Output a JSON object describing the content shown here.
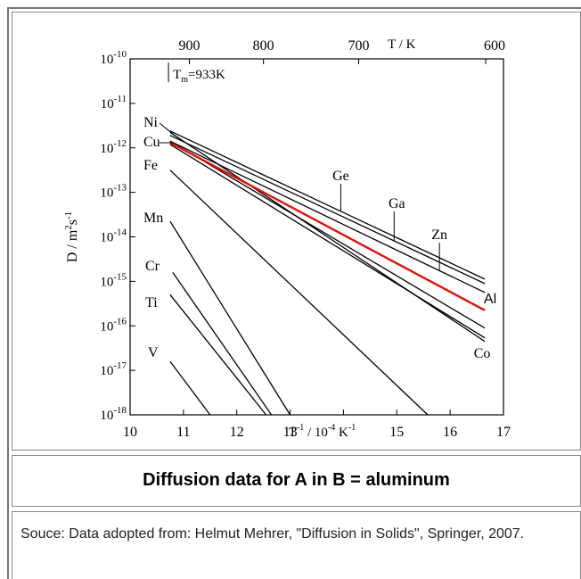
{
  "caption": "Diffusion data for A in B = aluminum",
  "source": "Souce: Data adopted from: Helmut Mehrer, \"Diffusion in Solids\", Springer, 2007.",
  "chart_data": {
    "type": "line",
    "xlabel_prefix": "T",
    "xlabel_mid": " / 10",
    "xlabel_unit": " K",
    "xlabel_sup1": "-1",
    "xlabel_sup2": "-4",
    "xlabel_sup3": "-1",
    "ylabel_parts": [
      "D / m",
      "2",
      "s",
      "-1"
    ],
    "top_axis_label": "T / K",
    "top_ticks": [
      "900",
      "800",
      "700",
      "600"
    ],
    "top_tick_values_K": [
      900,
      800,
      700,
      600
    ],
    "x_ticks": [
      "10",
      "11",
      "12",
      "13",
      "15",
      "16",
      "17"
    ],
    "x_tick_values": [
      10,
      11,
      12,
      13,
      15,
      16,
      17
    ],
    "xlim": [
      10,
      17
    ],
    "ylim_exponent": [
      -18,
      -10
    ],
    "y_tick_exponents": [
      -10,
      -11,
      -12,
      -13,
      -14,
      -15,
      -16,
      -17,
      -18
    ],
    "y_ticks": [
      "10",
      "10",
      "10",
      "10",
      "10",
      "10",
      "10",
      "10",
      "10"
    ],
    "y_tick_sups": [
      "-10",
      "-11",
      "-12",
      "-13",
      "-14",
      "-15",
      "-16",
      "-17",
      "-18"
    ],
    "log_scale_y": true,
    "melting_marker": {
      "label_prefix": "T",
      "label_sub": "m",
      "label_suffix": "=933K",
      "x": 10.72
    },
    "series": [
      {
        "name": "Ge",
        "x": [
          10.75,
          16.65
        ],
        "log10_D": [
          -11.62,
          -14.95
        ],
        "color": "#000000"
      },
      {
        "name": "Ga",
        "x": [
          10.75,
          16.65
        ],
        "log10_D": [
          -11.72,
          -15.05
        ],
        "color": "#000000"
      },
      {
        "name": "Zn",
        "x": [
          10.75,
          16.65
        ],
        "log10_D": [
          -11.85,
          -15.25
        ],
        "color": "#000000"
      },
      {
        "name": "Ni",
        "x": [
          10.75,
          16.65
        ],
        "log10_D": [
          -11.65,
          -16.35
        ],
        "color": "#000000"
      },
      {
        "name": "Cu",
        "x": [
          10.75,
          16.65
        ],
        "log10_D": [
          -11.85,
          -16.05
        ],
        "color": "#000000"
      },
      {
        "name": "Al",
        "x": [
          10.75,
          16.65
        ],
        "log10_D": [
          -11.88,
          -15.65
        ],
        "color": "#e0140a"
      },
      {
        "name": "Co",
        "x": [
          10.75,
          16.65
        ],
        "log10_D": [
          -11.92,
          -16.27
        ],
        "color": "#000000"
      },
      {
        "name": "Fe",
        "x": [
          10.75,
          15.58
        ],
        "log10_D": [
          -12.5,
          -18.0
        ],
        "color": "#000000"
      },
      {
        "name": "Mn",
        "x": [
          10.75,
          13.0
        ],
        "log10_D": [
          -13.65,
          -18.0
        ],
        "color": "#000000"
      },
      {
        "name": "Cr",
        "x": [
          10.8,
          12.65
        ],
        "log10_D": [
          -14.8,
          -18.0
        ],
        "color": "#000000"
      },
      {
        "name": "Ti",
        "x": [
          10.75,
          12.55
        ],
        "log10_D": [
          -15.3,
          -18.0
        ],
        "color": "#000000"
      },
      {
        "name": "V",
        "x": [
          10.75,
          11.5
        ],
        "log10_D": [
          -16.8,
          -18.0
        ],
        "color": "#000000"
      }
    ]
  }
}
